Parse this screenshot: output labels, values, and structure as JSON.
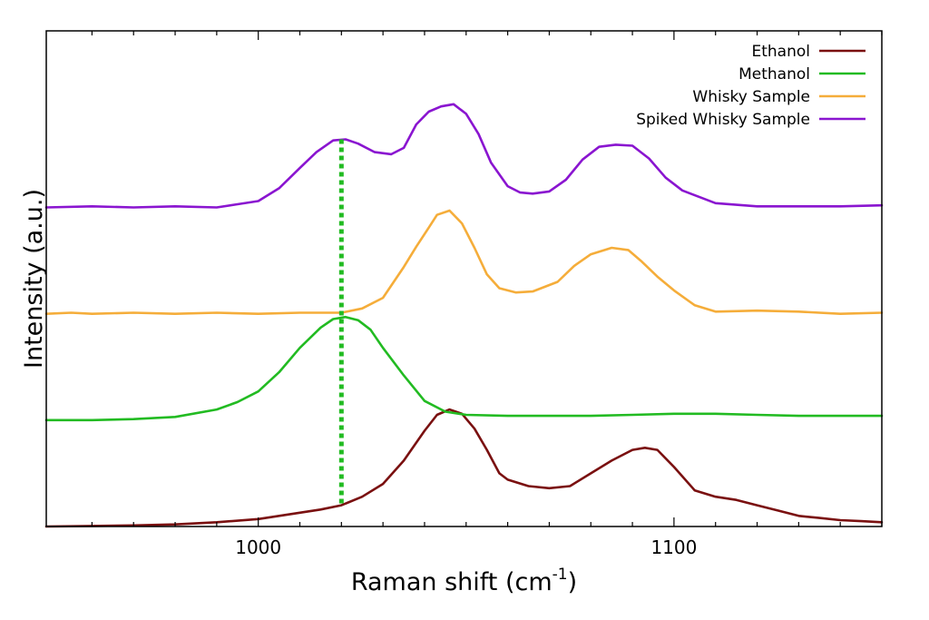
{
  "chart_data": {
    "type": "line",
    "xlabel": "Raman shift (cm",
    "xlabel_sup": "-1",
    "xlabel_tail": ")",
    "ylabel": "Intensity (a.u.)",
    "xlim": [
      949,
      1150
    ],
    "ylim": [
      0,
      4.66
    ],
    "x_ticks": [
      1000,
      1100
    ],
    "y_tick_labels": false,
    "grid": false,
    "legend_position": "top-right",
    "marker_line": {
      "x": 1020,
      "color": "#22bb22",
      "style": "dotted"
    },
    "series": [
      {
        "name": "Ethanol",
        "color": "#7a1010",
        "points": [
          [
            949,
            0.0
          ],
          [
            960,
            0.005
          ],
          [
            970,
            0.01
          ],
          [
            980,
            0.02
          ],
          [
            990,
            0.04
          ],
          [
            1000,
            0.07
          ],
          [
            1005,
            0.1
          ],
          [
            1010,
            0.13
          ],
          [
            1015,
            0.16
          ],
          [
            1020,
            0.2
          ],
          [
            1025,
            0.28
          ],
          [
            1030,
            0.4
          ],
          [
            1035,
            0.62
          ],
          [
            1040,
            0.9
          ],
          [
            1043,
            1.05
          ],
          [
            1046,
            1.1
          ],
          [
            1049,
            1.06
          ],
          [
            1052,
            0.92
          ],
          [
            1055,
            0.72
          ],
          [
            1058,
            0.5
          ],
          [
            1060,
            0.44
          ],
          [
            1065,
            0.38
          ],
          [
            1070,
            0.36
          ],
          [
            1075,
            0.38
          ],
          [
            1080,
            0.5
          ],
          [
            1085,
            0.62
          ],
          [
            1090,
            0.72
          ],
          [
            1093,
            0.74
          ],
          [
            1096,
            0.72
          ],
          [
            1100,
            0.56
          ],
          [
            1105,
            0.34
          ],
          [
            1110,
            0.28
          ],
          [
            1115,
            0.25
          ],
          [
            1120,
            0.2
          ],
          [
            1125,
            0.15
          ],
          [
            1130,
            0.1
          ],
          [
            1135,
            0.08
          ],
          [
            1140,
            0.06
          ],
          [
            1145,
            0.05
          ],
          [
            1150,
            0.04
          ]
        ]
      },
      {
        "name": "Methanol",
        "color": "#22bb22",
        "points": [
          [
            949,
            1.0
          ],
          [
            960,
            1.0
          ],
          [
            970,
            1.01
          ],
          [
            980,
            1.03
          ],
          [
            990,
            1.1
          ],
          [
            995,
            1.17
          ],
          [
            1000,
            1.27
          ],
          [
            1005,
            1.45
          ],
          [
            1010,
            1.68
          ],
          [
            1015,
            1.87
          ],
          [
            1018,
            1.95
          ],
          [
            1021,
            1.97
          ],
          [
            1024,
            1.94
          ],
          [
            1027,
            1.85
          ],
          [
            1030,
            1.68
          ],
          [
            1035,
            1.42
          ],
          [
            1040,
            1.18
          ],
          [
            1045,
            1.08
          ],
          [
            1050,
            1.05
          ],
          [
            1060,
            1.04
          ],
          [
            1070,
            1.04
          ],
          [
            1080,
            1.04
          ],
          [
            1090,
            1.05
          ],
          [
            1100,
            1.06
          ],
          [
            1110,
            1.06
          ],
          [
            1120,
            1.05
          ],
          [
            1130,
            1.04
          ],
          [
            1140,
            1.04
          ],
          [
            1150,
            1.04
          ]
        ]
      },
      {
        "name": "Whisky Sample",
        "color": "#f5ad3a",
        "points": [
          [
            949,
            2.0
          ],
          [
            955,
            2.01
          ],
          [
            960,
            2.0
          ],
          [
            970,
            2.01
          ],
          [
            980,
            2.0
          ],
          [
            990,
            2.01
          ],
          [
            1000,
            2.0
          ],
          [
            1010,
            2.01
          ],
          [
            1020,
            2.01
          ],
          [
            1025,
            2.05
          ],
          [
            1030,
            2.15
          ],
          [
            1035,
            2.44
          ],
          [
            1038,
            2.63
          ],
          [
            1041,
            2.81
          ],
          [
            1043,
            2.93
          ],
          [
            1046,
            2.97
          ],
          [
            1049,
            2.85
          ],
          [
            1052,
            2.62
          ],
          [
            1055,
            2.37
          ],
          [
            1058,
            2.24
          ],
          [
            1062,
            2.2
          ],
          [
            1066,
            2.21
          ],
          [
            1072,
            2.3
          ],
          [
            1076,
            2.45
          ],
          [
            1080,
            2.56
          ],
          [
            1085,
            2.62
          ],
          [
            1089,
            2.6
          ],
          [
            1092,
            2.5
          ],
          [
            1096,
            2.35
          ],
          [
            1100,
            2.22
          ],
          [
            1105,
            2.08
          ],
          [
            1110,
            2.02
          ],
          [
            1120,
            2.03
          ],
          [
            1130,
            2.02
          ],
          [
            1140,
            2.0
          ],
          [
            1150,
            2.01
          ]
        ]
      },
      {
        "name": "Spiked Whisky Sample",
        "color": "#8a15d0",
        "points": [
          [
            949,
            3.0
          ],
          [
            960,
            3.01
          ],
          [
            970,
            3.0
          ],
          [
            980,
            3.01
          ],
          [
            990,
            3.0
          ],
          [
            995,
            3.03
          ],
          [
            1000,
            3.06
          ],
          [
            1005,
            3.18
          ],
          [
            1010,
            3.37
          ],
          [
            1014,
            3.52
          ],
          [
            1018,
            3.63
          ],
          [
            1021,
            3.64
          ],
          [
            1024,
            3.6
          ],
          [
            1028,
            3.52
          ],
          [
            1032,
            3.5
          ],
          [
            1035,
            3.56
          ],
          [
            1038,
            3.78
          ],
          [
            1041,
            3.9
          ],
          [
            1044,
            3.95
          ],
          [
            1047,
            3.97
          ],
          [
            1050,
            3.88
          ],
          [
            1053,
            3.69
          ],
          [
            1056,
            3.42
          ],
          [
            1060,
            3.2
          ],
          [
            1063,
            3.14
          ],
          [
            1066,
            3.13
          ],
          [
            1070,
            3.15
          ],
          [
            1074,
            3.26
          ],
          [
            1078,
            3.45
          ],
          [
            1082,
            3.57
          ],
          [
            1086,
            3.59
          ],
          [
            1090,
            3.58
          ],
          [
            1094,
            3.46
          ],
          [
            1098,
            3.28
          ],
          [
            1102,
            3.16
          ],
          [
            1106,
            3.1
          ],
          [
            1110,
            3.04
          ],
          [
            1120,
            3.01
          ],
          [
            1130,
            3.01
          ],
          [
            1140,
            3.01
          ],
          [
            1150,
            3.02
          ]
        ]
      }
    ]
  }
}
